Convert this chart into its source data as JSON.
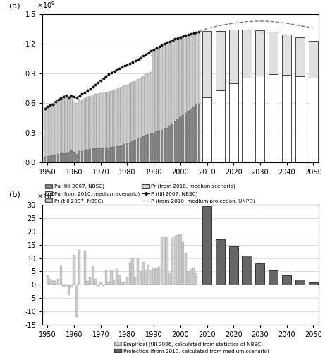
{
  "panel_a": {
    "ylim": [
      0,
      1500000000.0
    ],
    "yticks": [
      0,
      300000000.0,
      600000000.0,
      900000000.0,
      1200000000.0,
      1500000000.0
    ],
    "xlim": [
      1948,
      2052
    ],
    "xticks": [
      1950,
      1960,
      1970,
      1980,
      1990,
      2000,
      2010,
      2020,
      2030,
      2040,
      2050
    ],
    "years_hist": [
      1949,
      1950,
      1951,
      1952,
      1953,
      1954,
      1955,
      1956,
      1957,
      1958,
      1959,
      1960,
      1961,
      1962,
      1963,
      1964,
      1965,
      1966,
      1967,
      1968,
      1969,
      1970,
      1971,
      1972,
      1973,
      1974,
      1975,
      1976,
      1977,
      1978,
      1979,
      1980,
      1981,
      1982,
      1983,
      1984,
      1985,
      1986,
      1987,
      1988,
      1989,
      1990,
      1991,
      1992,
      1993,
      1994,
      1995,
      1996,
      1997,
      1998,
      1999,
      2000,
      2001,
      2002,
      2003,
      2004,
      2005,
      2006,
      2007
    ],
    "Pu_hist": [
      57650000,
      61690000,
      66320000,
      71630000,
      78260000,
      82490000,
      91850000,
      92200000,
      92000000,
      107210000,
      123730000,
      100730000,
      83090000,
      116550000,
      116460000,
      129500000,
      130450000,
      133130000,
      140670000,
      144240000,
      141170000,
      144240000,
      147100000,
      153100000,
      153100000,
      160300000,
      160300000,
      162900000,
      166600000,
      172450000,
      184950000,
      191400000,
      201710000,
      214800000,
      222740000,
      240170000,
      250940000,
      263660000,
      276740000,
      286610000,
      295400000,
      301950000,
      312030000,
      321750000,
      331730000,
      341690000,
      351740000,
      373040000,
      394490000,
      416080000,
      437480000,
      459060000,
      480640000,
      502120000,
      523760000,
      542830000,
      562120000,
      582880000,
      593790000
    ],
    "Pr_hist": [
      484010000,
      505810000,
      509190000,
      517680000,
      536170000,
      548740000,
      559220000,
      571650000,
      584300000,
      552170000,
      543110000,
      510710000,
      512940000,
      526990000,
      516720000,
      522200000,
      534030000,
      541650000,
      542440000,
      545330000,
      550060000,
      553960000,
      553120000,
      552960000,
      560320000,
      563880000,
      573190000,
      583490000,
      588800000,
      590270000,
      590990000,
      593910000,
      596950000,
      598720000,
      601960000,
      603660000,
      605760000,
      609380000,
      612740000,
      616240000,
      620310000,
      837080000,
      839710000,
      849960000,
      851470000,
      856810000,
      859470000,
      850850000,
      841770000,
      831530000,
      820380000,
      808370000,
      795630000,
      782410000,
      768510000,
      757050000,
      745440000,
      731600000,
      714960000
    ],
    "P_hist_years": [
      1949,
      1950,
      1951,
      1952,
      1953,
      1954,
      1955,
      1956,
      1957,
      1958,
      1959,
      1960,
      1961,
      1962,
      1963,
      1964,
      1965,
      1966,
      1967,
      1968,
      1969,
      1970,
      1971,
      1972,
      1973,
      1974,
      1975,
      1976,
      1977,
      1978,
      1979,
      1980,
      1981,
      1982,
      1983,
      1984,
      1985,
      1986,
      1987,
      1988,
      1989,
      1990,
      1991,
      1992,
      1993,
      1994,
      1995,
      1996,
      1997,
      1998,
      1999,
      2000,
      2001,
      2002,
      2003,
      2004,
      2005,
      2006,
      2007
    ],
    "P_hist": [
      541660000,
      567500000,
      577500000,
      585500000,
      614500000,
      632500000,
      650500000,
      667300000,
      676700000,
      659900000,
      672100000,
      662100000,
      658700000,
      672950000,
      691730000,
      704990000,
      725380000,
      745420000,
      763680000,
      785340000,
      806710000,
      829920000,
      852290000,
      871770000,
      892110000,
      908590000,
      924200000,
      937170000,
      949740000,
      962590000,
      975420000,
      987050000,
      1000720000,
      1016540000,
      1030080000,
      1043570000,
      1058510000,
      1075070000,
      1093000000,
      1110260000,
      1127040000,
      1143330000,
      1158230000,
      1171710000,
      1185170000,
      1198500000,
      1211210000,
      1223890000,
      1236260000,
      1247610000,
      1257860000,
      1267430000,
      1276270000,
      1284530000,
      1292270000,
      1299880000,
      1307560000,
      1314480000,
      1321290000
    ],
    "years_proj": [
      2010,
      2015,
      2020,
      2025,
      2030,
      2035,
      2040,
      2045,
      2050
    ],
    "Pu_proj": [
      660000000,
      730000000,
      800000000,
      855000000,
      880000000,
      890000000,
      885000000,
      875000000,
      860000000
    ],
    "Pr_proj": [
      670000000,
      600000000,
      540000000,
      490000000,
      455000000,
      430000000,
      410000000,
      390000000,
      370000000
    ],
    "P_proj_years": [
      2010,
      2015,
      2020,
      2025,
      2030,
      2035,
      2040,
      2045,
      2050
    ],
    "P_proj": [
      1354000000,
      1385000000,
      1408000000,
      1424000000,
      1430000000,
      1424000000,
      1407000000,
      1383000000,
      1360000000
    ],
    "color_Pu_hist": "#888888",
    "color_Pr_hist": "#cccccc",
    "color_Pu_proj": "#ffffff",
    "color_Pr_proj": "#e0e0e0",
    "color_P_hist": "#111111",
    "color_P_proj": "#888888",
    "edgecolor_hist": "#555555",
    "edgecolor_proj": "#444444"
  },
  "panel_b": {
    "ylim": [
      -15000000,
      30000000
    ],
    "yticks": [
      -15000000,
      -10000000,
      -5000000,
      0,
      5000000,
      10000000,
      15000000,
      20000000,
      25000000,
      30000000
    ],
    "xlim": [
      1948,
      2052
    ],
    "xticks": [
      1950,
      1960,
      1970,
      1980,
      1990,
      2000,
      2010,
      2020,
      2030,
      2040,
      2050
    ],
    "years_emp": [
      1950,
      1951,
      1952,
      1953,
      1954,
      1955,
      1956,
      1957,
      1958,
      1959,
      1960,
      1961,
      1962,
      1963,
      1964,
      1965,
      1966,
      1967,
      1968,
      1969,
      1970,
      1971,
      1972,
      1973,
      1974,
      1975,
      1976,
      1977,
      1978,
      1979,
      1980,
      1981,
      1982,
      1983,
      1984,
      1985,
      1986,
      1987,
      1988,
      1989,
      1990,
      1991,
      1992,
      1993,
      1994,
      1995,
      1996,
      1997,
      1998,
      1999,
      2000,
      2001,
      2002,
      2003,
      2004,
      2005,
      2006
    ],
    "mig_emp": [
      3500000,
      2200000,
      1600000,
      1400000,
      2200000,
      6900000,
      -800000,
      -400000,
      -4000000,
      -1000000,
      11300000,
      -12000000,
      13000000,
      -300000,
      12800000,
      1400000,
      2700000,
      6900000,
      2200000,
      -1000000,
      1000000,
      -500000,
      5500000,
      1100000,
      5500000,
      1800000,
      5800000,
      3500000,
      1100000,
      800000,
      3000000,
      8400000,
      10100000,
      3000000,
      10100000,
      5200000,
      8500000,
      5600000,
      7600000,
      5300000,
      6400000,
      6500000,
      6600000,
      17800000,
      18100000,
      17900000,
      4700000,
      17500000,
      18300000,
      18500000,
      18800000,
      16000000,
      12100000,
      5000000,
      6000000,
      6500000,
      4500000
    ],
    "years_proj": [
      2010,
      2015,
      2020,
      2025,
      2030,
      2035,
      2040,
      2045,
      2050
    ],
    "mig_proj": [
      29500000,
      17000000,
      14500000,
      11000000,
      8100000,
      5500000,
      3500000,
      1900000,
      1000000
    ],
    "color_emp": "#cccccc",
    "color_proj": "#666666",
    "edgecolor_emp": "#888888",
    "edgecolor_proj": "#333333"
  }
}
